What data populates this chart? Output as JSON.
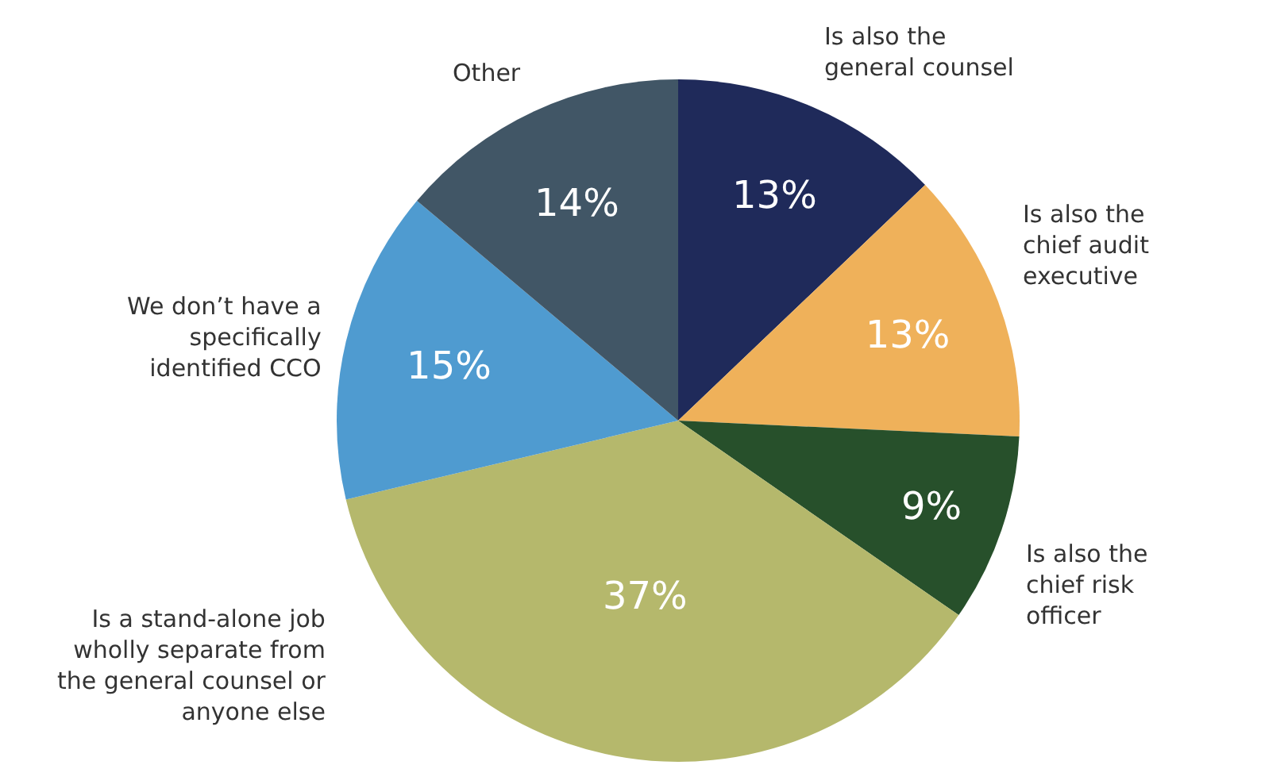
{
  "chart_data": {
    "type": "pie",
    "categories": [
      "Is also the general counsel",
      "Is also the chief audit executive",
      "Is also the chief risk officer",
      "Is a stand-alone job wholly separate from the general counsel or anyone else",
      "We don’t have a specifically identified CCO",
      "Other"
    ],
    "values": [
      13,
      13,
      9,
      37,
      15,
      14
    ],
    "colors": [
      "#1f2a5a",
      "#efb15a",
      "#27502b",
      "#b5b86c",
      "#4f9bd0",
      "#415666"
    ],
    "value_labels": [
      "13%",
      "13%",
      "9%",
      "37%",
      "15%",
      "14%"
    ],
    "legend": false
  }
}
